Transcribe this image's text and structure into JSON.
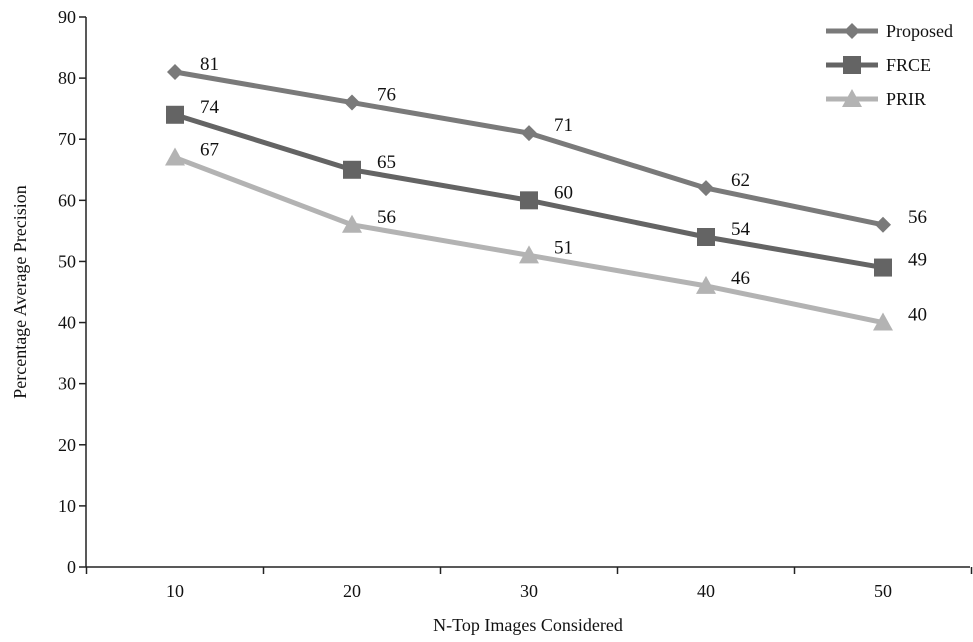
{
  "chart_data": {
    "type": "line",
    "title": "",
    "xlabel": "N-Top Images Considered",
    "ylabel": "Percentage Average Precision",
    "x": [
      10,
      20,
      30,
      40,
      50
    ],
    "x_tick_labels": [
      "10",
      "20",
      "30",
      "40",
      "50"
    ],
    "ylim": [
      0,
      90
    ],
    "y_ticks": [
      0,
      10,
      20,
      30,
      40,
      50,
      60,
      70,
      80,
      90
    ],
    "grid": false,
    "legend_position": "top-right",
    "series": [
      {
        "name": "Proposed",
        "values": [
          81,
          76,
          71,
          62,
          56
        ],
        "color": "#7a7a7a",
        "marker": "diamond"
      },
      {
        "name": "FRCE",
        "values": [
          74,
          65,
          60,
          54,
          49
        ],
        "color": "#646464",
        "marker": "square"
      },
      {
        "name": "PRIR",
        "values": [
          67,
          56,
          51,
          46,
          40
        ],
        "color": "#b3b3b3",
        "marker": "triangle"
      }
    ]
  }
}
